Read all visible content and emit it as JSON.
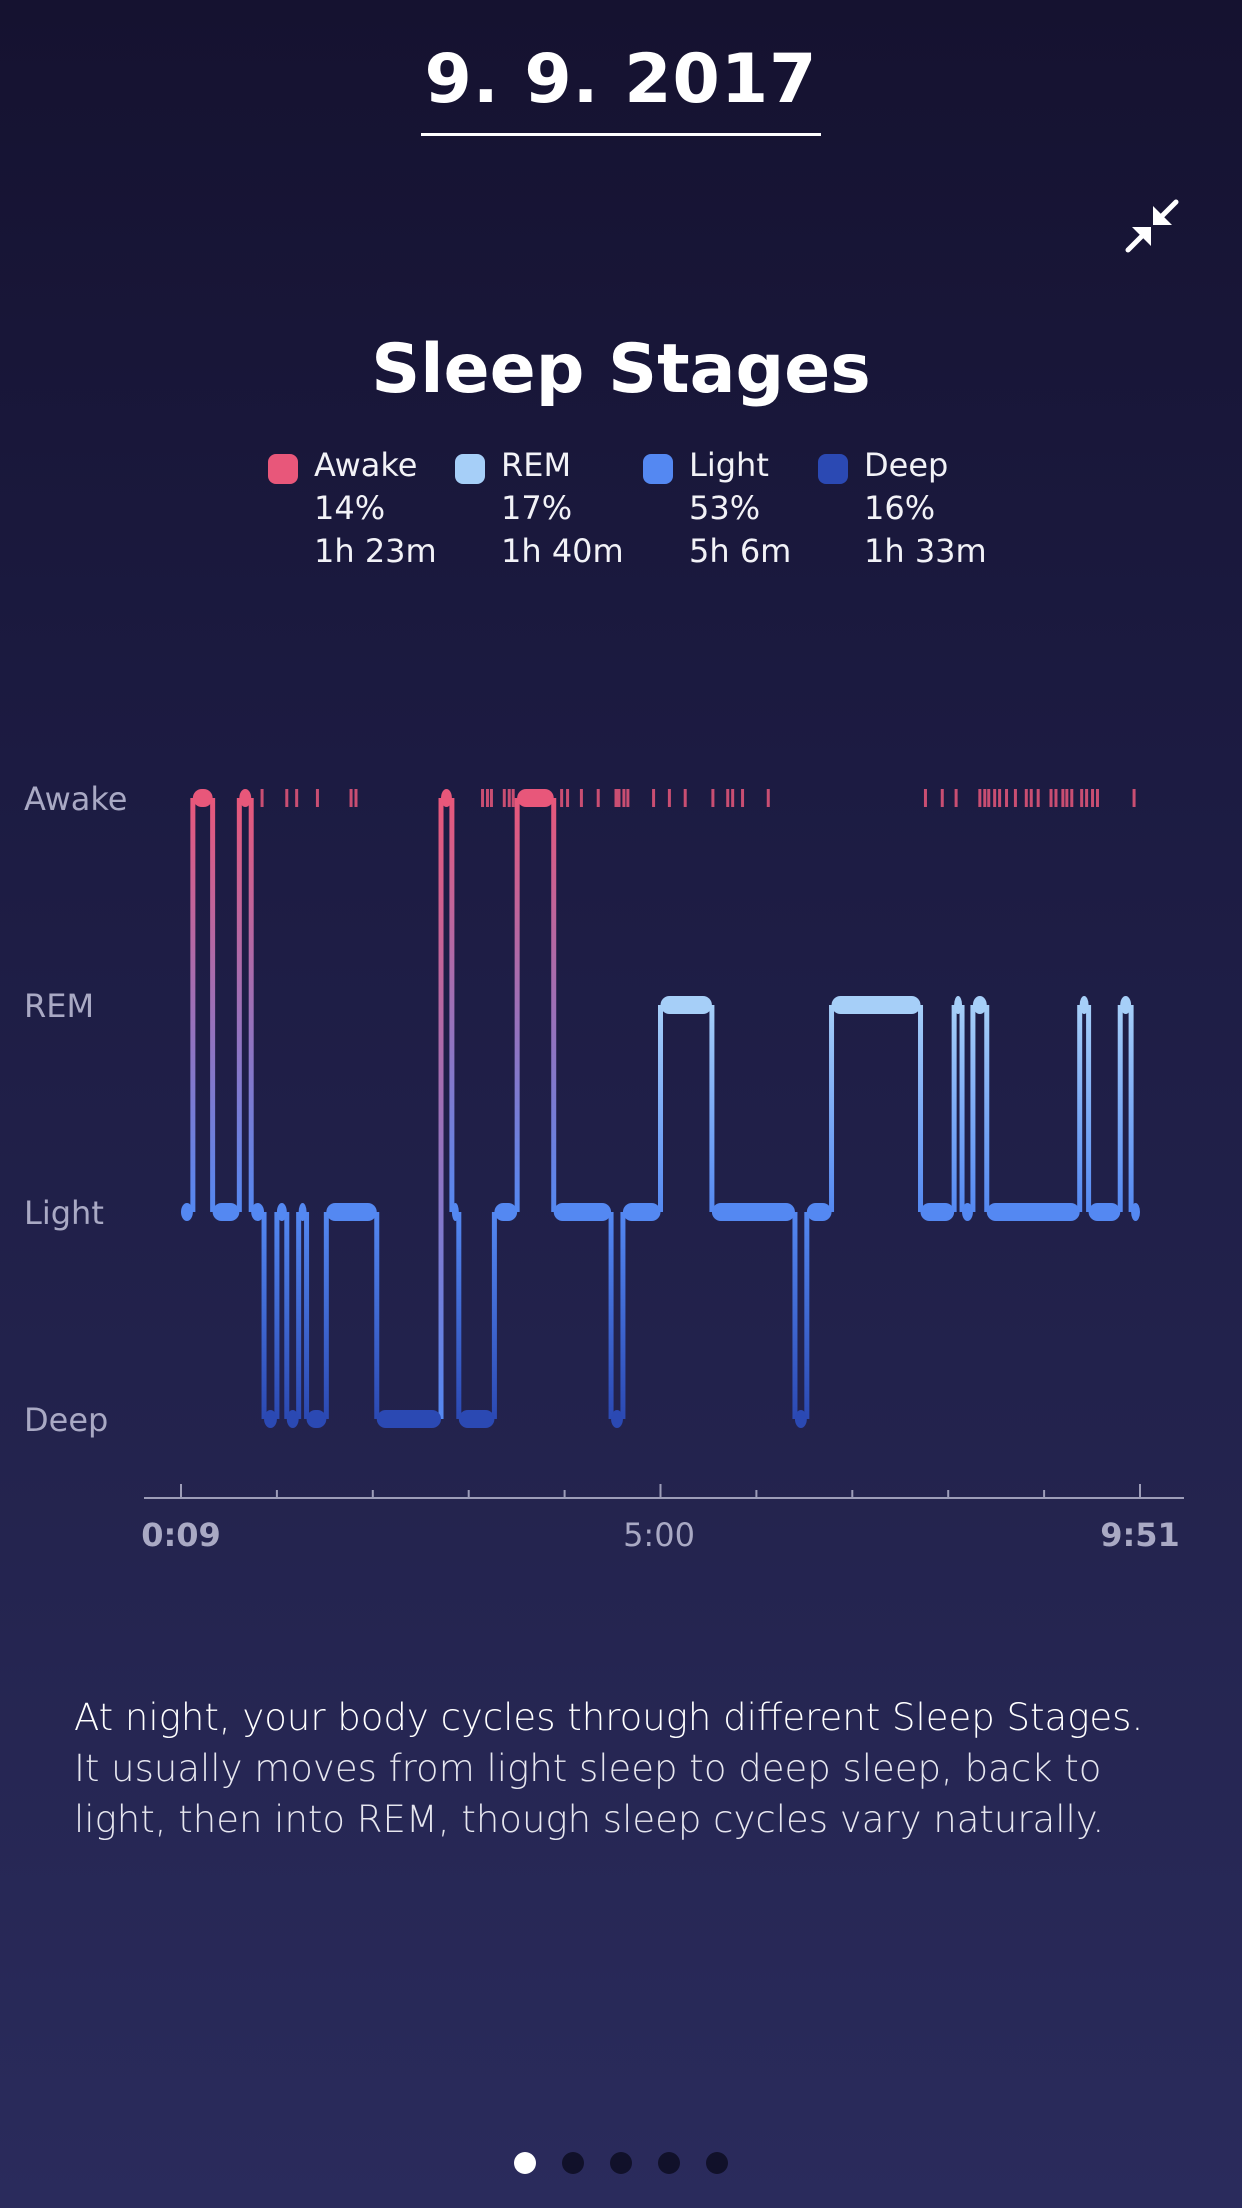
{
  "header": {
    "date": "9. 9. 2017"
  },
  "icons": {
    "collapse": "collapse-arrows-icon"
  },
  "title": "Sleep Stages",
  "legend": [
    {
      "stage": "Awake",
      "percent": "14%",
      "duration": "1h 23m",
      "color": "#e8577a"
    },
    {
      "stage": "REM",
      "percent": "17%",
      "duration": "1h 40m",
      "color": "#a6cff8"
    },
    {
      "stage": "Light",
      "percent": "53%",
      "duration": "5h 6m",
      "color": "#5488f2"
    },
    {
      "stage": "Deep",
      "percent": "16%",
      "duration": "1h 33m",
      "color": "#2b49b3"
    }
  ],
  "chart_data": {
    "type": "line",
    "title": "Sleep Stages",
    "y_categories": [
      "Awake",
      "REM",
      "Light",
      "Deep"
    ],
    "x_tick_labels": [
      "0:09",
      "5:00",
      "9:51"
    ],
    "x_range_hours": [
      0.15,
      9.85
    ],
    "x_unit": "hours after midnight",
    "stage_segments": [
      {
        "start": 0.15,
        "end": 0.27,
        "stage": "Light"
      },
      {
        "start": 0.27,
        "end": 0.47,
        "stage": "Awake"
      },
      {
        "start": 0.47,
        "end": 0.74,
        "stage": "Light"
      },
      {
        "start": 0.74,
        "end": 0.86,
        "stage": "Awake"
      },
      {
        "start": 0.86,
        "end": 0.99,
        "stage": "Light"
      },
      {
        "start": 0.99,
        "end": 1.12,
        "stage": "Deep"
      },
      {
        "start": 1.12,
        "end": 1.22,
        "stage": "Light"
      },
      {
        "start": 1.22,
        "end": 1.34,
        "stage": "Deep"
      },
      {
        "start": 1.34,
        "end": 1.42,
        "stage": "Light"
      },
      {
        "start": 1.42,
        "end": 1.62,
        "stage": "Deep"
      },
      {
        "start": 1.62,
        "end": 2.13,
        "stage": "Light"
      },
      {
        "start": 2.13,
        "end": 2.78,
        "stage": "Deep"
      },
      {
        "start": 2.78,
        "end": 2.89,
        "stage": "Awake"
      },
      {
        "start": 2.89,
        "end": 2.96,
        "stage": "Light"
      },
      {
        "start": 2.96,
        "end": 3.32,
        "stage": "Deep"
      },
      {
        "start": 3.32,
        "end": 3.55,
        "stage": "Light"
      },
      {
        "start": 3.55,
        "end": 3.92,
        "stage": "Awake"
      },
      {
        "start": 3.92,
        "end": 4.5,
        "stage": "Light"
      },
      {
        "start": 4.5,
        "end": 4.62,
        "stage": "Deep"
      },
      {
        "start": 4.62,
        "end": 5.0,
        "stage": "Light"
      },
      {
        "start": 5.0,
        "end": 5.52,
        "stage": "REM"
      },
      {
        "start": 5.52,
        "end": 6.36,
        "stage": "Light"
      },
      {
        "start": 6.36,
        "end": 6.48,
        "stage": "Deep"
      },
      {
        "start": 6.48,
        "end": 6.73,
        "stage": "Light"
      },
      {
        "start": 6.73,
        "end": 7.63,
        "stage": "REM"
      },
      {
        "start": 7.63,
        "end": 7.97,
        "stage": "Light"
      },
      {
        "start": 7.97,
        "end": 8.05,
        "stage": "REM"
      },
      {
        "start": 8.05,
        "end": 8.16,
        "stage": "Light"
      },
      {
        "start": 8.16,
        "end": 8.3,
        "stage": "REM"
      },
      {
        "start": 8.3,
        "end": 9.24,
        "stage": "Light"
      },
      {
        "start": 9.24,
        "end": 9.33,
        "stage": "REM"
      },
      {
        "start": 9.33,
        "end": 9.65,
        "stage": "Light"
      },
      {
        "start": 9.65,
        "end": 9.76,
        "stage": "REM"
      },
      {
        "start": 9.76,
        "end": 9.85,
        "stage": "Light"
      }
    ],
    "brief_awakenings": [
      0.97,
      1.22,
      1.32,
      1.53,
      1.87,
      1.92,
      3.2,
      3.25,
      3.29,
      3.42,
      3.47,
      3.51,
      4.0,
      4.06,
      4.2,
      4.37,
      4.55,
      4.58,
      4.63,
      4.67,
      4.93,
      5.09,
      5.25,
      5.53,
      5.68,
      5.73,
      5.83,
      6.09,
      7.68,
      7.85,
      7.99,
      8.23,
      8.28,
      8.32,
      8.38,
      8.43,
      8.5,
      8.59,
      8.7,
      8.75,
      8.82,
      8.95,
      9.0,
      9.07,
      9.11,
      9.16,
      9.26,
      9.31,
      9.37,
      9.42,
      9.79
    ]
  },
  "description": {
    "lead": "At night, your body cycles through different Sleep Stages.",
    "rest": " It usually moves from light sleep to deep sleep, back to light, then into REM, though sleep cycles vary naturally."
  },
  "pagination": {
    "count": 5,
    "active": 0
  }
}
